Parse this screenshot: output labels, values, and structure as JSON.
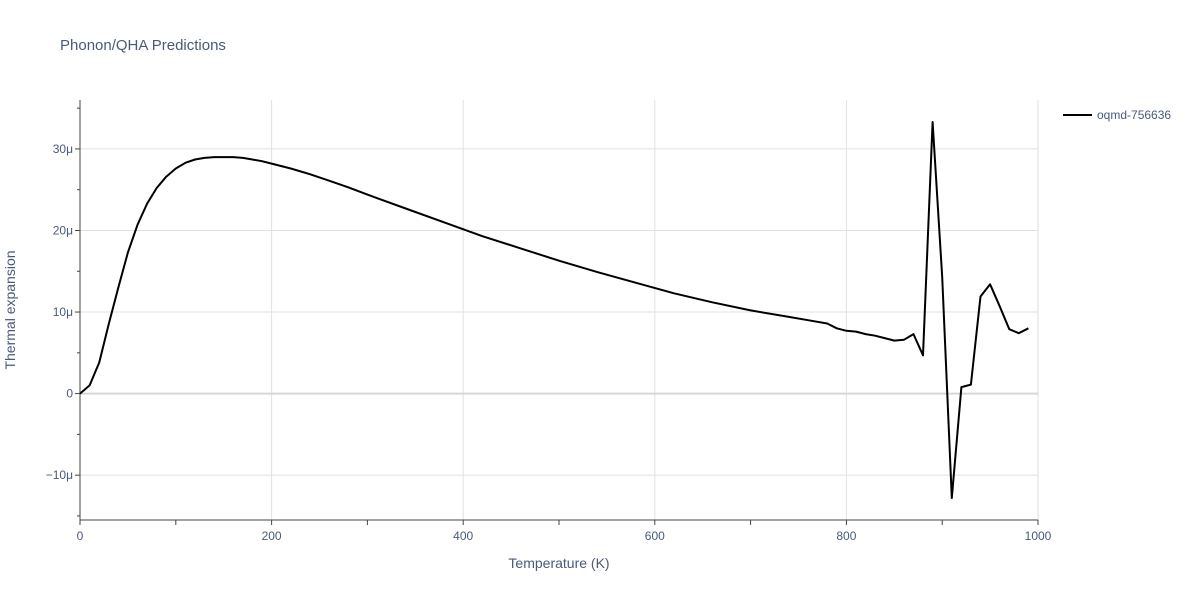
{
  "chart_data": {
    "type": "line",
    "title": "Phonon/QHA Predictions",
    "xlabel": "Temperature (K)",
    "ylabel": "Thermal expansion",
    "xlim": [
      0,
      1000
    ],
    "ylim": [
      -15.5,
      36
    ],
    "x_ticks": [
      0,
      200,
      400,
      600,
      800,
      1000
    ],
    "x_tick_labels": [
      "0",
      "200",
      "400",
      "600",
      "800",
      "1000"
    ],
    "y_ticks": [
      -10,
      0,
      10,
      20,
      30
    ],
    "y_tick_labels": [
      "−10μ",
      "0",
      "10μ",
      "20μ",
      "30μ"
    ],
    "grid": true,
    "legend_position": "top-right",
    "series": [
      {
        "name": "oqmd-756636",
        "color": "#000000",
        "x": [
          0,
          10,
          20,
          30,
          40,
          50,
          60,
          70,
          80,
          90,
          100,
          110,
          120,
          130,
          140,
          150,
          160,
          170,
          180,
          190,
          200,
          220,
          240,
          260,
          280,
          300,
          340,
          380,
          420,
          460,
          500,
          540,
          580,
          620,
          660,
          700,
          740,
          760,
          780,
          790,
          800,
          810,
          820,
          830,
          840,
          850,
          860,
          870,
          880,
          890,
          900,
          910,
          920,
          930,
          940,
          950,
          960,
          970,
          980,
          990
        ],
        "values": [
          0,
          1.0,
          3.8,
          8.5,
          13.0,
          17.3,
          20.7,
          23.3,
          25.2,
          26.6,
          27.6,
          28.3,
          28.7,
          28.9,
          29.0,
          29.0,
          29.0,
          28.9,
          28.7,
          28.5,
          28.2,
          27.6,
          26.9,
          26.1,
          25.3,
          24.4,
          22.7,
          21.0,
          19.3,
          17.8,
          16.3,
          14.9,
          13.6,
          12.3,
          11.2,
          10.2,
          9.4,
          9.0,
          8.6,
          8.0,
          7.7,
          7.6,
          7.3,
          7.1,
          6.8,
          6.5,
          6.6,
          7.3,
          4.7,
          33.3,
          14.3,
          -12.8,
          0.8,
          1.1,
          11.9,
          13.4,
          10.7,
          7.9,
          7.4,
          8.0
        ]
      }
    ]
  }
}
